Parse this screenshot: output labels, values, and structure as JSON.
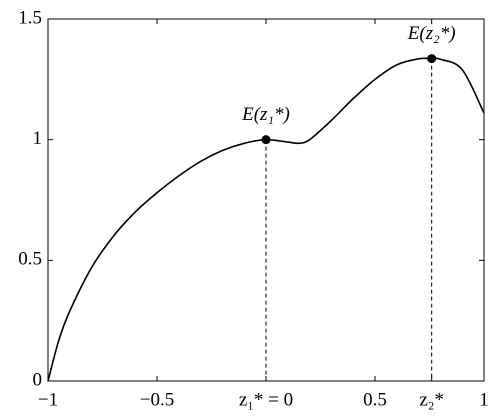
{
  "chart_data": {
    "type": "line",
    "x": [
      -1,
      -0.95,
      -0.9,
      -0.8,
      -0.7,
      -0.6,
      -0.5,
      -0.4,
      -0.3,
      -0.2,
      -0.1,
      0,
      0.1,
      0.15,
      0.2,
      0.3,
      0.4,
      0.5,
      0.6,
      0.7,
      0.76,
      0.8,
      0.9,
      1
    ],
    "series": [
      {
        "color": "#000000",
        "values": [
          0,
          0.17,
          0.29,
          0.47,
          0.6,
          0.7,
          0.78,
          0.85,
          0.91,
          0.955,
          0.985,
          1.0,
          0.99,
          0.985,
          1.0,
          1.08,
          1.17,
          1.25,
          1.31,
          1.335,
          1.336,
          1.333,
          1.29,
          1.11
        ]
      }
    ],
    "xlim": [
      -1,
      1
    ],
    "ylim": [
      0,
      1.5
    ],
    "xticks": [
      {
        "value": -1,
        "label": "−1"
      },
      {
        "value": -0.5,
        "label": "−0.5"
      },
      {
        "value": 0,
        "label": "z₁* = 0"
      },
      0.5,
      {
        "value": 0.76,
        "label": "z₂*"
      },
      1
    ],
    "yticks": [
      0,
      0.5,
      1,
      1.5
    ],
    "annotations": [
      {
        "x": 0,
        "y": 1.0,
        "label": "E(z₁*)"
      },
      {
        "x": 0.76,
        "y": 1.336,
        "label": "E(z₂*)"
      }
    ]
  }
}
